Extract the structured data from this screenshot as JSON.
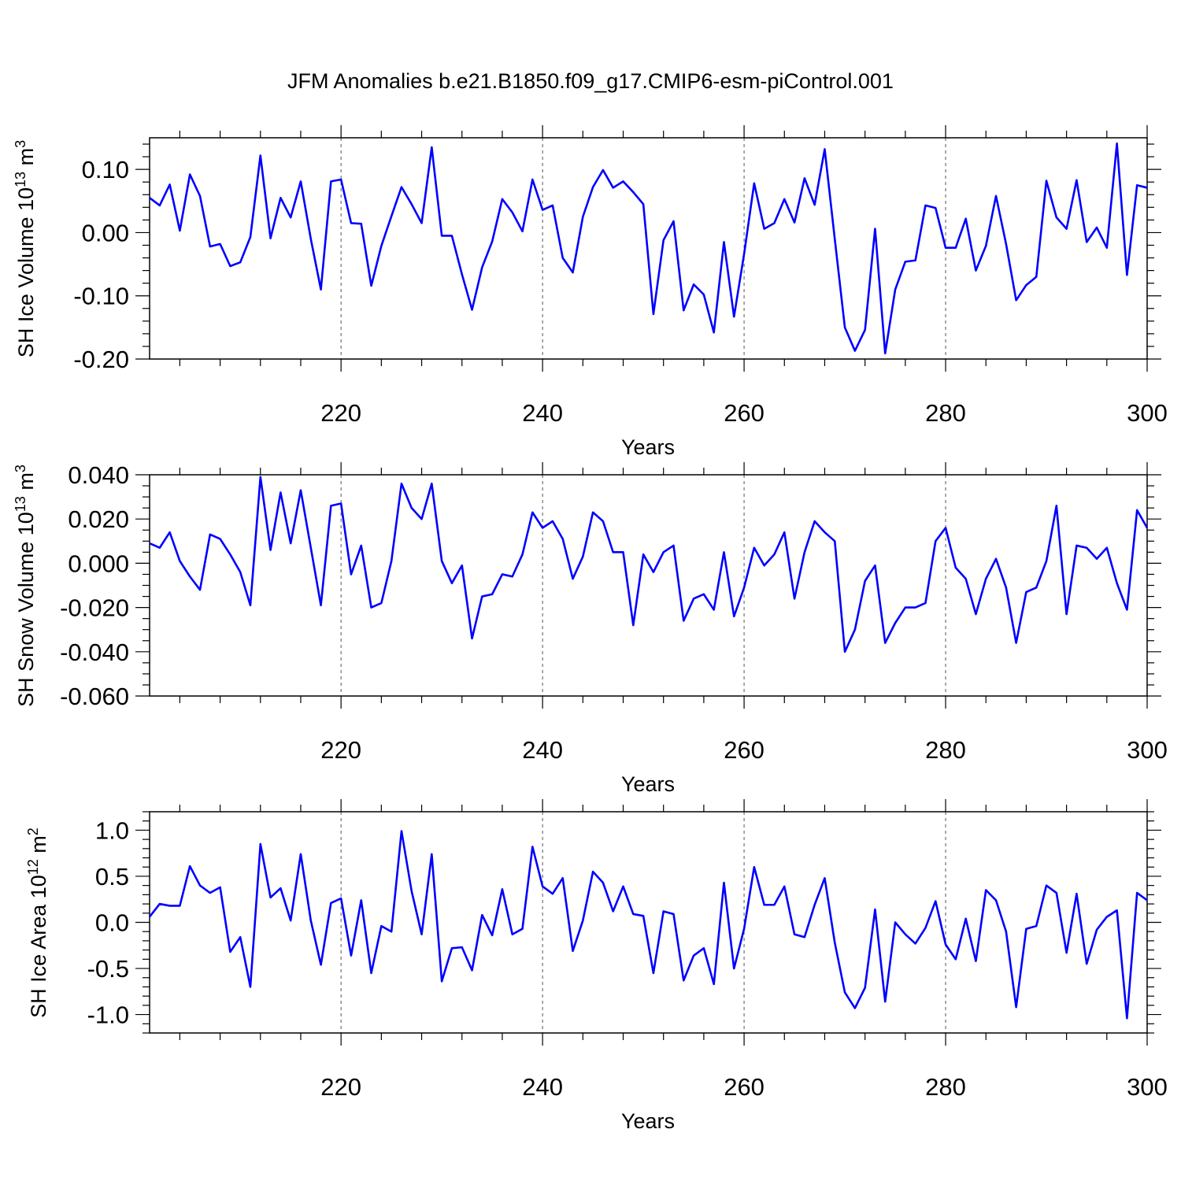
{
  "title": "JFM Anomalies b.e21.B1850.f09_g17.CMIP6-esm-piControl.001",
  "chart_data": [
    {
      "type": "line",
      "series_name": "SH Ice Volume",
      "ylabel": "SH Ice Volume 10",
      "ylabel_exp": "13",
      "ylabel_unit": "m",
      "ylabel_unit_exp": "3",
      "xlabel": "Years",
      "xlim": [
        201,
        300
      ],
      "ylim": [
        -0.2,
        0.15
      ],
      "x_major_ticks": [
        220,
        240,
        260,
        280,
        300
      ],
      "x_tick_labels": [
        "220",
        "240",
        "260",
        "280",
        "300"
      ],
      "x_minor_step": 4,
      "y_major_ticks": [
        0.1,
        0.0,
        -0.1,
        -0.2
      ],
      "y_tick_labels": [
        "0.10",
        "0.00",
        "-0.10",
        "-0.20"
      ],
      "y_minor_step": 0.02,
      "grid": "dashed vertical at major x ticks",
      "color": "#0000ff",
      "x_start": 201,
      "values": [
        0.055,
        0.043,
        0.076,
        0.003,
        0.092,
        0.058,
        -0.022,
        -0.018,
        -0.053,
        -0.047,
        -0.007,
        0.122,
        -0.009,
        0.055,
        0.024,
        0.081,
        -0.01,
        -0.09,
        0.081,
        0.084,
        0.015,
        0.014,
        -0.084,
        -0.021,
        0.026,
        0.072,
        0.045,
        0.015,
        0.135,
        -0.005,
        -0.005,
        -0.066,
        -0.122,
        -0.055,
        -0.014,
        0.053,
        0.032,
        0.002,
        0.084,
        0.036,
        0.043,
        -0.04,
        -0.063,
        0.025,
        0.072,
        0.099,
        0.071,
        0.081,
        0.064,
        0.045,
        -0.129,
        -0.012,
        0.018,
        -0.123,
        -0.082,
        -0.098,
        -0.158,
        -0.015,
        -0.133,
        -0.034,
        0.078,
        0.006,
        0.015,
        0.053,
        0.016,
        0.086,
        0.044,
        0.132,
        -0.01,
        -0.15,
        -0.187,
        -0.154,
        0.006,
        -0.191,
        -0.09,
        -0.046,
        -0.044,
        0.043,
        0.039,
        -0.024,
        -0.024,
        0.022,
        -0.06,
        -0.021,
        0.058,
        -0.018,
        -0.107,
        -0.083,
        -0.07,
        0.082,
        0.024,
        0.006,
        0.083,
        -0.015,
        0.008,
        -0.024,
        0.141,
        -0.067,
        0.075,
        0.071
      ]
    },
    {
      "type": "line",
      "series_name": "SH Snow Volume",
      "ylabel": "SH Snow Volume 10",
      "ylabel_exp": "13",
      "ylabel_unit": "m",
      "ylabel_unit_exp": "3",
      "xlabel": "Years",
      "xlim": [
        201,
        300
      ],
      "ylim": [
        -0.06,
        0.04
      ],
      "x_major_ticks": [
        220,
        240,
        260,
        280,
        300
      ],
      "x_tick_labels": [
        "220",
        "240",
        "260",
        "280",
        "300"
      ],
      "x_minor_step": 4,
      "y_major_ticks": [
        0.04,
        0.02,
        0.0,
        -0.02,
        -0.04,
        -0.06
      ],
      "y_tick_labels": [
        "0.040",
        "0.020",
        "0.000",
        "-0.020",
        "-0.040",
        "-0.060"
      ],
      "y_minor_step": 0.005,
      "grid": "dashed vertical at major x ticks",
      "color": "#0000ff",
      "x_start": 201,
      "values": [
        0.009,
        0.007,
        0.014,
        0.001,
        -0.006,
        -0.012,
        0.013,
        0.011,
        0.004,
        -0.004,
        -0.019,
        0.039,
        0.006,
        0.032,
        0.009,
        0.033,
        0.007,
        -0.019,
        0.026,
        0.027,
        -0.005,
        0.008,
        -0.02,
        -0.018,
        0.001,
        0.036,
        0.025,
        0.02,
        0.036,
        0.001,
        -0.009,
        -0.001,
        -0.034,
        -0.015,
        -0.014,
        -0.005,
        -0.006,
        0.004,
        0.023,
        0.016,
        0.019,
        0.011,
        -0.007,
        0.003,
        0.023,
        0.019,
        0.005,
        0.005,
        -0.028,
        0.004,
        -0.004,
        0.005,
        0.008,
        -0.026,
        -0.016,
        -0.014,
        -0.021,
        0.005,
        -0.024,
        -0.011,
        0.007,
        -0.001,
        0.004,
        0.014,
        -0.016,
        0.005,
        0.019,
        0.014,
        0.01,
        -0.04,
        -0.03,
        -0.008,
        -0.001,
        -0.036,
        -0.027,
        -0.02,
        -0.02,
        -0.018,
        0.01,
        0.016,
        -0.002,
        -0.007,
        -0.023,
        -0.007,
        0.002,
        -0.011,
        -0.036,
        -0.013,
        -0.011,
        0.001,
        0.026,
        -0.023,
        0.008,
        0.007,
        0.002,
        0.007,
        -0.009,
        -0.021,
        0.024,
        0.016
      ]
    },
    {
      "type": "line",
      "series_name": "SH Ice Area",
      "ylabel": "SH Ice Area 10",
      "ylabel_exp": "12",
      "ylabel_unit": "m",
      "ylabel_unit_exp": "2",
      "xlabel": "Years",
      "xlim": [
        201,
        300
      ],
      "ylim": [
        -1.2,
        1.2
      ],
      "x_major_ticks": [
        220,
        240,
        260,
        280,
        300
      ],
      "x_tick_labels": [
        "220",
        "240",
        "260",
        "280",
        "300"
      ],
      "x_minor_step": 4,
      "y_major_ticks": [
        1.0,
        0.5,
        0.0,
        -0.5,
        -1.0
      ],
      "y_tick_labels": [
        "1.0",
        "0.5",
        "0.0",
        "-0.5",
        "-1.0"
      ],
      "y_minor_step": 0.1,
      "grid": "dashed vertical at major x ticks",
      "color": "#0000ff",
      "x_start": 201,
      "values": [
        0.06,
        0.2,
        0.18,
        0.18,
        0.61,
        0.4,
        0.32,
        0.38,
        -0.32,
        -0.16,
        -0.7,
        0.85,
        0.27,
        0.37,
        0.02,
        0.74,
        0.02,
        -0.46,
        0.21,
        0.26,
        -0.36,
        0.24,
        -0.55,
        -0.04,
        -0.1,
        0.99,
        0.34,
        -0.13,
        0.74,
        -0.64,
        -0.28,
        -0.27,
        -0.52,
        0.08,
        -0.14,
        0.36,
        -0.13,
        -0.07,
        0.82,
        0.39,
        0.31,
        0.48,
        -0.31,
        0.02,
        0.55,
        0.43,
        0.12,
        0.39,
        0.09,
        0.07,
        -0.55,
        0.12,
        0.09,
        -0.63,
        -0.36,
        -0.28,
        -0.67,
        0.43,
        -0.5,
        -0.07,
        0.6,
        0.19,
        0.19,
        0.39,
        -0.13,
        -0.16,
        0.19,
        0.48,
        -0.22,
        -0.76,
        -0.93,
        -0.71,
        0.14,
        -0.86,
        0.0,
        -0.13,
        -0.23,
        -0.06,
        0.23,
        -0.24,
        -0.4,
        0.04,
        -0.42,
        0.35,
        0.24,
        -0.1,
        -0.92,
        -0.07,
        -0.04,
        0.4,
        0.32,
        -0.33,
        0.31,
        -0.45,
        -0.08,
        0.06,
        0.13,
        -1.04,
        0.32,
        0.24
      ]
    }
  ]
}
